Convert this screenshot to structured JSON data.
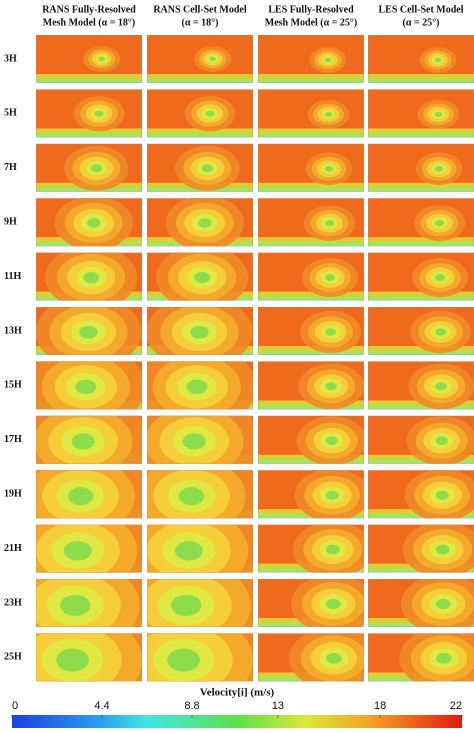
{
  "columns": [
    {
      "line1": "RANS Fully-Resolved",
      "line2": "Mesh Model (α = 18°)"
    },
    {
      "line1": "RANS Cell-Set Model",
      "line2": "(α = 18°)"
    },
    {
      "line1": "LES Fully-Resolved",
      "line2": "Mesh Model (α = 25°)"
    },
    {
      "line1": "LES Cell-Set Model",
      "line2": "(α = 25°)"
    }
  ],
  "rows": [
    "3H",
    "5H",
    "7H",
    "9H",
    "11H",
    "13H",
    "15H",
    "17H",
    "19H",
    "21H",
    "23H",
    "25H"
  ],
  "colorbar": {
    "title": "Velocity[i] (m/s)",
    "range": [
      0,
      22
    ],
    "ticks": [
      0,
      4.4,
      8.8,
      13,
      18,
      22
    ]
  }
}
